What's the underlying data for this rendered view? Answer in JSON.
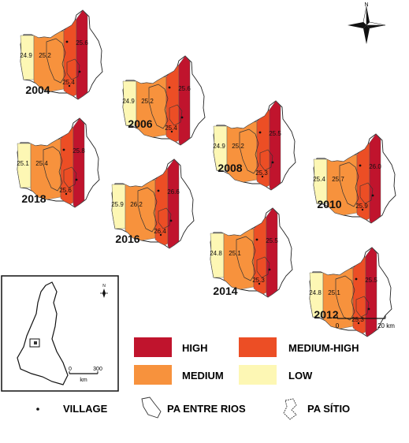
{
  "colors": {
    "high": "#c0142d",
    "medium_high": "#ec4e25",
    "medium": "#f7923d",
    "low": "#fdf7b4",
    "outline": "#222222"
  },
  "maps": [
    {
      "year": "2004",
      "values": {
        "low": "24.9",
        "medium": "25.2",
        "medium_high": "25.4",
        "high": "25.6"
      }
    },
    {
      "year": "2006",
      "values": {
        "low": "24.9",
        "medium": "25.2",
        "medium_high": "25.4",
        "high": "25.6"
      }
    },
    {
      "year": "2008",
      "values": {
        "low": "24.9",
        "medium": "25.2",
        "medium_high": "25.3",
        "high": "25.5"
      }
    },
    {
      "year": "2010",
      "values": {
        "low": "25.4",
        "medium": "25.7",
        "medium_high": "25.9",
        "high": "26.0"
      }
    },
    {
      "year": "2012",
      "values": {
        "low": "24.8",
        "medium": "25.1",
        "medium_high": "25.3",
        "high": "25.5"
      }
    },
    {
      "year": "2014",
      "values": {
        "low": "24.8",
        "medium": "25.1",
        "medium_high": "25.3",
        "high": "25.5"
      }
    },
    {
      "year": "2016",
      "values": {
        "low": "25.9",
        "medium": "26.2",
        "medium_high": "26.4",
        "high": "26.6"
      }
    },
    {
      "year": "2018",
      "values": {
        "low": "25.1",
        "medium": "25.4",
        "medium_high": "25.6",
        "high": "25.8"
      }
    }
  ],
  "north_arrow": {
    "label": "N",
    "icon": "compass-rose-icon"
  },
  "scale_bar": {
    "start": "0",
    "end": "20 km"
  },
  "inset_map": {
    "scale_start": "0",
    "scale_end": "300",
    "scale_unit": "km",
    "north_label": "N"
  },
  "legend": {
    "high": "HIGH",
    "medium_high": "MEDIUM-HIGH",
    "medium": "MEDIUM",
    "low": "LOW",
    "village": "VILLAGE",
    "pa_entre_rios": "PA ENTRE RIOS",
    "pa_sitio": "PA SÍTIO"
  }
}
